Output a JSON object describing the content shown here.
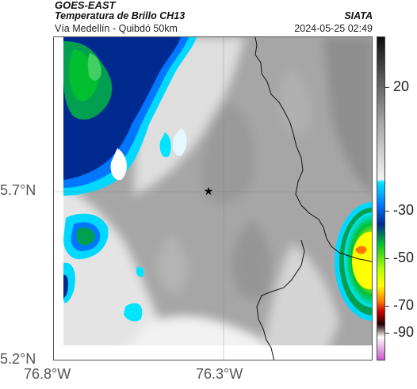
{
  "header": {
    "satellite": "GOES-EAST",
    "product": "Temperatura de Brillo CH13",
    "route": "Vía Medellín - Quibdó 50km",
    "organization": "SIATA",
    "timestamp": "2024-05-25 02:49"
  },
  "map": {
    "lat_ticks": [
      "5.7°N",
      "5.2°N"
    ],
    "lon_ticks": [
      "76.8°W",
      "76.3°W"
    ],
    "marker": "star-icon"
  },
  "colorbar": {
    "labels": [
      "20",
      "-30",
      "-50",
      "-70",
      "-90"
    ],
    "colors": [
      "#0d0d0d",
      "#5a5a5a",
      "#a8a8a8",
      "#f2f2f2",
      "#00e5ff",
      "#0077ff",
      "#002a8f",
      "#00c030",
      "#b8ff00",
      "#ffff00",
      "#ff7700",
      "#cc0000",
      "#220000",
      "#ffffff",
      "#cc55cc"
    ]
  }
}
